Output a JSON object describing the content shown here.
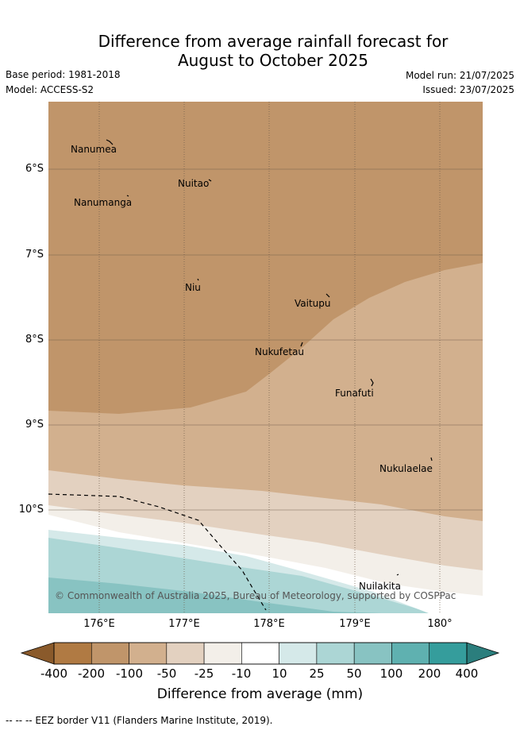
{
  "title": {
    "line1": "Difference from average rainfall forecast for",
    "line2": "August to October 2025"
  },
  "meta": {
    "base_period": "Base period: 1981-2018",
    "model": "Model: ACCESS-S2",
    "model_run": "Model run: 21/07/2025",
    "issued": "Issued: 23/07/2025"
  },
  "map": {
    "latitude_labels": [
      "6°S",
      "7°S",
      "8°S",
      "9°S",
      "10°S"
    ],
    "longitude_labels": [
      "176°E",
      "177°E",
      "178°E",
      "179°E",
      "180°"
    ],
    "places": [
      "Nanumea",
      "Nuitao",
      "Nanumanga",
      "Niu",
      "Vaitupu",
      "Nukufetau",
      "Funafuti",
      "Nukulaelae",
      "Nuilakita"
    ],
    "copyright": "© Commonwealth of Australia 2025, Bureau of Meteorology, supported by COSPPac"
  },
  "colorbar": {
    "label": "Difference from average (mm)",
    "ticks": [
      "-400",
      "-200",
      "-100",
      "-50",
      "-25",
      "-10",
      "10",
      "25",
      "50",
      "100",
      "200",
      "400"
    ],
    "colors": [
      "#8a5a2b",
      "#b07a43",
      "#c0956a",
      "#d2b08e",
      "#e3d1c0",
      "#f3efe9",
      "#ffffff",
      "#d5e9e9",
      "#acd6d5",
      "#88c3c2",
      "#5fb1b0",
      "#359d9c",
      "#2b7e7d"
    ]
  },
  "footnote": "--  --  -- EEZ border V11 (Flanders Marine Institute, 2019)."
}
